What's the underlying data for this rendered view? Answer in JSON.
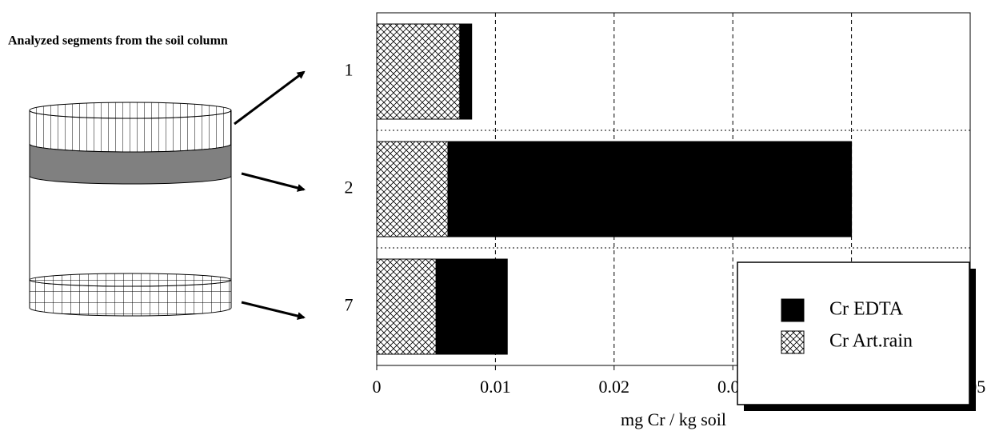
{
  "chart_data": {
    "type": "stacked-barh",
    "annotation": "Analyzed segments from the soil column",
    "xlabel": "mg Cr / kg soil",
    "categories": [
      "1",
      "2",
      "7"
    ],
    "series": [
      {
        "name": "Cr Art.rain",
        "color": "#000000",
        "hatch": "cross",
        "values": [
          0.007,
          0.006,
          0.005
        ]
      },
      {
        "name": "Cr EDTA",
        "color": "#000000",
        "values": [
          0.001,
          0.034,
          0.006
        ]
      }
    ],
    "xlim": [
      0,
      0.05
    ],
    "xticks": [
      0,
      0.01,
      0.02,
      0.03,
      0.04,
      0.05
    ],
    "grid": true,
    "legend": "lower right"
  }
}
